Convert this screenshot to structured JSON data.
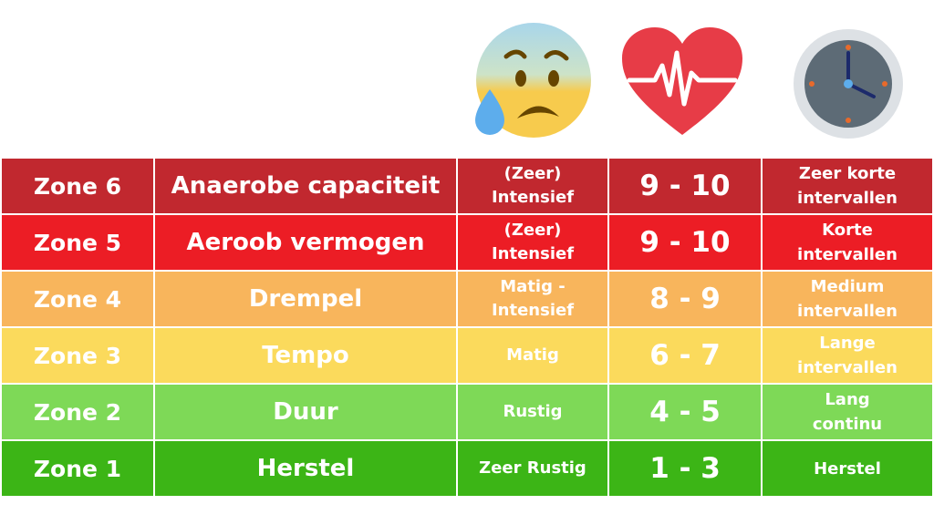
{
  "icons": [
    {
      "name": "anxious-sweat-face-icon",
      "color": "#F7CB4D"
    },
    {
      "name": "heartbeat-heart-icon",
      "color": "#E73C47"
    },
    {
      "name": "clock-icon",
      "color": "#5D6B76"
    }
  ],
  "zones": [
    {
      "zone": "Zone 6",
      "name": "Anaerobe capaciteit",
      "intensity": "(Zeer)\nIntensief",
      "rpe": "9 - 10",
      "training": "Zeer korte\nintervallen",
      "color": "#C1282F"
    },
    {
      "zone": "Zone 5",
      "name": "Aeroob vermogen",
      "intensity": "(Zeer)\nIntensief",
      "rpe": "9 - 10",
      "training": "Korte\nintervallen",
      "color": "#EC1D25"
    },
    {
      "zone": "Zone 4",
      "name": "Drempel",
      "intensity": "Matig -\nIntensief",
      "rpe": "8 - 9",
      "training": "Medium\nintervallen",
      "color": "#F8B55C"
    },
    {
      "zone": "Zone 3",
      "name": "Tempo",
      "intensity": "Matig",
      "rpe": "6 - 7",
      "training": "Lange\nintervallen",
      "color": "#FBDA5C"
    },
    {
      "zone": "Zone 2",
      "name": "Duur",
      "intensity": "Rustig",
      "rpe": "4 - 5",
      "training": "Lang\ncontinu",
      "color": "#7ED957"
    },
    {
      "zone": "Zone 1",
      "name": "Herstel",
      "intensity": "Zeer Rustig",
      "rpe": "1 - 3",
      "training": "Herstel",
      "color": "#3CB516"
    }
  ]
}
